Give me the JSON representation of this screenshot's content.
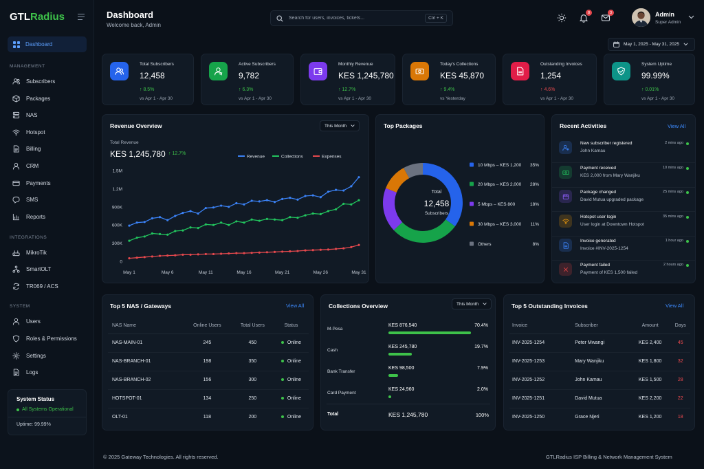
{
  "brand": {
    "prefix": "GTL",
    "accent": "Radius"
  },
  "sidebar": {
    "dashboard": "Dashboard",
    "sections": {
      "management": "MANAGEMENT",
      "integrations": "INTEGRATIONS",
      "system": "SYSTEM"
    },
    "items": [
      {
        "label": "Subscribers",
        "icon": "users-icon"
      },
      {
        "label": "Packages",
        "icon": "box-icon"
      },
      {
        "label": "NAS",
        "icon": "server-icon"
      },
      {
        "label": "Hotspot",
        "icon": "wifi-icon"
      },
      {
        "label": "Billing",
        "icon": "document-icon"
      },
      {
        "label": "CRM",
        "icon": "user-icon"
      },
      {
        "label": "Payments",
        "icon": "card-icon"
      },
      {
        "label": "SMS",
        "icon": "chat-icon"
      },
      {
        "label": "Reports",
        "icon": "chart-icon"
      },
      {
        "label": "MikroTik",
        "icon": "router-icon"
      },
      {
        "label": "SmartOLT",
        "icon": "network-icon"
      },
      {
        "label": "TR069 / ACS",
        "icon": "sync-icon"
      },
      {
        "label": "Users",
        "icon": "user-icon"
      },
      {
        "label": "Roles & Permissions",
        "icon": "shield-icon"
      },
      {
        "label": "Settings",
        "icon": "gear-icon"
      },
      {
        "label": "Logs",
        "icon": "document-icon"
      }
    ],
    "system_status": {
      "title": "System Status",
      "state": "All Systems Operational",
      "uptime": "Uptime: 99.99%"
    }
  },
  "header": {
    "title": "Dashboard",
    "subtitle": "Welcome back, Admin",
    "search_placeholder": "Search for users, invoices, tickets...",
    "search_shortcut": "Ctrl + K",
    "notifications_count": "8",
    "messages_count": "3",
    "user": {
      "name": "Admin",
      "role": "Super Admin"
    },
    "date_range": "May 1, 2025 - May 31, 2025"
  },
  "kpis": [
    {
      "label": "Total Subscribers",
      "value": "12,458",
      "change": "8.5%",
      "direction": "up",
      "period": "vs Apr 1 - Apr 30",
      "color": "#2563eb"
    },
    {
      "label": "Active Subscribers",
      "value": "9,782",
      "change": "6.3%",
      "direction": "up",
      "period": "vs Apr 1 - Apr 30",
      "color": "#16a34a"
    },
    {
      "label": "Monthly Revenue",
      "value": "KES 1,245,780",
      "change": "12.7%",
      "direction": "up",
      "period": "vs Apr 1 - Apr 30",
      "color": "#7c3aed"
    },
    {
      "label": "Today's Collections",
      "value": "KES 45,870",
      "change": "9.4%",
      "direction": "up",
      "period": "vs Yesterday",
      "color": "#d97706"
    },
    {
      "label": "Outstanding Invoices",
      "value": "1,254",
      "change": "4.6%",
      "direction": "down",
      "period": "vs Apr 1 - Apr 30",
      "color": "#e11d48"
    },
    {
      "label": "System Uptime",
      "value": "99.99%",
      "change": "0.01%",
      "direction": "up",
      "period": "vs Apr 1 - Apr 30",
      "color": "#0d9488"
    }
  ],
  "revenue_overview": {
    "title": "Revenue Overview",
    "filter": "This Month",
    "total_label": "Total Revenue",
    "total_value": "KES 1,245,780",
    "total_change": "12.7%"
  },
  "top_packages": {
    "title": "Top Packages",
    "center_label": "Total",
    "center_value": "12,458",
    "center_sub": "Subscribers"
  },
  "recent_activities": {
    "title": "Recent Activities",
    "view_all": "View All",
    "items": [
      {
        "title": "New subscriber registered",
        "desc": "John Kamau",
        "time": "2 mins ago",
        "icon": "user-add-icon",
        "color": "#3b82f6"
      },
      {
        "title": "Payment received",
        "desc": "KES 2,000 from Mary Wanjiku",
        "time": "10 mins ago",
        "icon": "money-icon",
        "color": "#22c55e"
      },
      {
        "title": "Package changed",
        "desc": "David Mutua upgraded package",
        "time": "25 mins ago",
        "icon": "package-icon",
        "color": "#8b5cf6"
      },
      {
        "title": "Hotspot user login",
        "desc": "User login at Downtown Hotspot",
        "time": "35 mins ago",
        "icon": "wifi-icon",
        "color": "#f59e0b"
      },
      {
        "title": "Invoice generated",
        "desc": "Invoice #INV-2025-1254",
        "time": "1 hour ago",
        "icon": "invoice-icon",
        "color": "#3b82f6"
      },
      {
        "title": "Payment failed",
        "desc": "Payment of KES 1,500 failed",
        "time": "2 hours ago",
        "icon": "x-icon",
        "color": "#ef4444"
      }
    ]
  },
  "nas_table": {
    "title": "Top 5 NAS / Gateways",
    "view_all": "View All",
    "headers": [
      "NAS Name",
      "Online Users",
      "Total Users",
      "Status"
    ],
    "rows": [
      [
        "NAS-MAIN-01",
        "245",
        "450",
        "Online"
      ],
      [
        "NAS-BRANCH-01",
        "198",
        "350",
        "Online"
      ],
      [
        "NAS-BRANCH-02",
        "156",
        "300",
        "Online"
      ],
      [
        "HOTSPOT-01",
        "134",
        "250",
        "Online"
      ],
      [
        "OLT-01",
        "118",
        "200",
        "Online"
      ]
    ]
  },
  "collections": {
    "title": "Collections Overview",
    "filter": "This Month",
    "rows": [
      {
        "method": "M-Pesa",
        "amount": "KES 876,540",
        "percent": "70.4%",
        "fraction": 0.704
      },
      {
        "method": "Cash",
        "amount": "KES 245,780",
        "percent": "19.7%",
        "fraction": 0.197
      },
      {
        "method": "Bank Transfer",
        "amount": "KES 98,500",
        "percent": "7.9%",
        "fraction": 0.079
      },
      {
        "method": "Card Payment",
        "amount": "KES 24,960",
        "percent": "2.0%",
        "fraction": 0.02
      }
    ],
    "total_label": "Total",
    "total_amount": "KES 1,245,780",
    "total_percent": "100%"
  },
  "invoices_table": {
    "title": "Top 5 Outstanding Invoices",
    "view_all": "View All",
    "headers": [
      "Invoice",
      "Subscriber",
      "Amount",
      "Days"
    ],
    "rows": [
      [
        "INV-2025-1254",
        "Peter Mwangi",
        "KES 2,400",
        "45"
      ],
      [
        "INV-2025-1253",
        "Mary Wanjiku",
        "KES 1,800",
        "32"
      ],
      [
        "INV-2025-1252",
        "John Kamau",
        "KES 1,500",
        "28"
      ],
      [
        "INV-2025-1251",
        "David Mutua",
        "KES 2,200",
        "22"
      ],
      [
        "INV-2025-1250",
        "Grace Njeri",
        "KES 1,200",
        "18"
      ]
    ]
  },
  "footer": {
    "copyright": "© 2025 Gateway Technologies. All rights reserved.",
    "product": "GTLRadius ISP Billing & Network Management System"
  },
  "chart_data": [
    {
      "type": "line",
      "x": [
        "May 1",
        "May 2",
        "May 3",
        "May 4",
        "May 5",
        "May 6",
        "May 7",
        "May 8",
        "May 9",
        "May 10",
        "May 11",
        "May 12",
        "May 13",
        "May 14",
        "May 15",
        "May 16",
        "May 17",
        "May 18",
        "May 19",
        "May 20",
        "May 21",
        "May 22",
        "May 23",
        "May 24",
        "May 25",
        "May 26",
        "May 27",
        "May 28",
        "May 29",
        "May 30",
        "May 31"
      ],
      "xticks": [
        "May 1",
        "May 6",
        "May 11",
        "May 16",
        "May 21",
        "May 26",
        "May 31"
      ],
      "yticks": [
        "0",
        "300K",
        "600K",
        "900K",
        "1.2M",
        "1.5M"
      ],
      "ylim": [
        0,
        1500000
      ],
      "legend_position": "top-right",
      "grid": false,
      "series": [
        {
          "name": "Revenue",
          "color": "#3b82f6",
          "values": [
            590000,
            640000,
            650000,
            710000,
            730000,
            680000,
            750000,
            800000,
            830000,
            790000,
            880000,
            890000,
            920000,
            900000,
            960000,
            940000,
            1000000,
            990000,
            1010000,
            980000,
            1030000,
            1050000,
            1020000,
            1080000,
            1090000,
            1060000,
            1150000,
            1180000,
            1170000,
            1240000,
            1390000
          ]
        },
        {
          "name": "Collections",
          "color": "#22c55e",
          "values": [
            340000,
            390000,
            410000,
            460000,
            450000,
            440000,
            500000,
            510000,
            560000,
            550000,
            610000,
            600000,
            640000,
            600000,
            660000,
            640000,
            690000,
            670000,
            700000,
            690000,
            680000,
            730000,
            720000,
            760000,
            790000,
            780000,
            830000,
            860000,
            950000,
            940000,
            1010000
          ]
        },
        {
          "name": "Expenses",
          "color": "#e5484d",
          "values": [
            50000,
            60000,
            70000,
            80000,
            90000,
            95000,
            100000,
            110000,
            110000,
            115000,
            120000,
            120000,
            125000,
            130000,
            135000,
            135000,
            140000,
            145000,
            150000,
            155000,
            160000,
            165000,
            170000,
            180000,
            185000,
            190000,
            195000,
            205000,
            215000,
            235000,
            270000
          ]
        }
      ]
    },
    {
      "type": "pie",
      "donut": true,
      "categories": [
        "10 Mbps – KES 1,200",
        "20 Mbps – KES 2,000",
        "5 Mbps – KES 800",
        "30 Mbps – KES 3,000",
        "Others"
      ],
      "values": [
        35,
        28,
        18,
        11,
        8
      ],
      "labels": [
        "35%",
        "28%",
        "18%",
        "11%",
        "8%"
      ],
      "colors": [
        "#2563eb",
        "#16a34a",
        "#7c3aed",
        "#d97706",
        "#6b7280"
      ]
    }
  ]
}
